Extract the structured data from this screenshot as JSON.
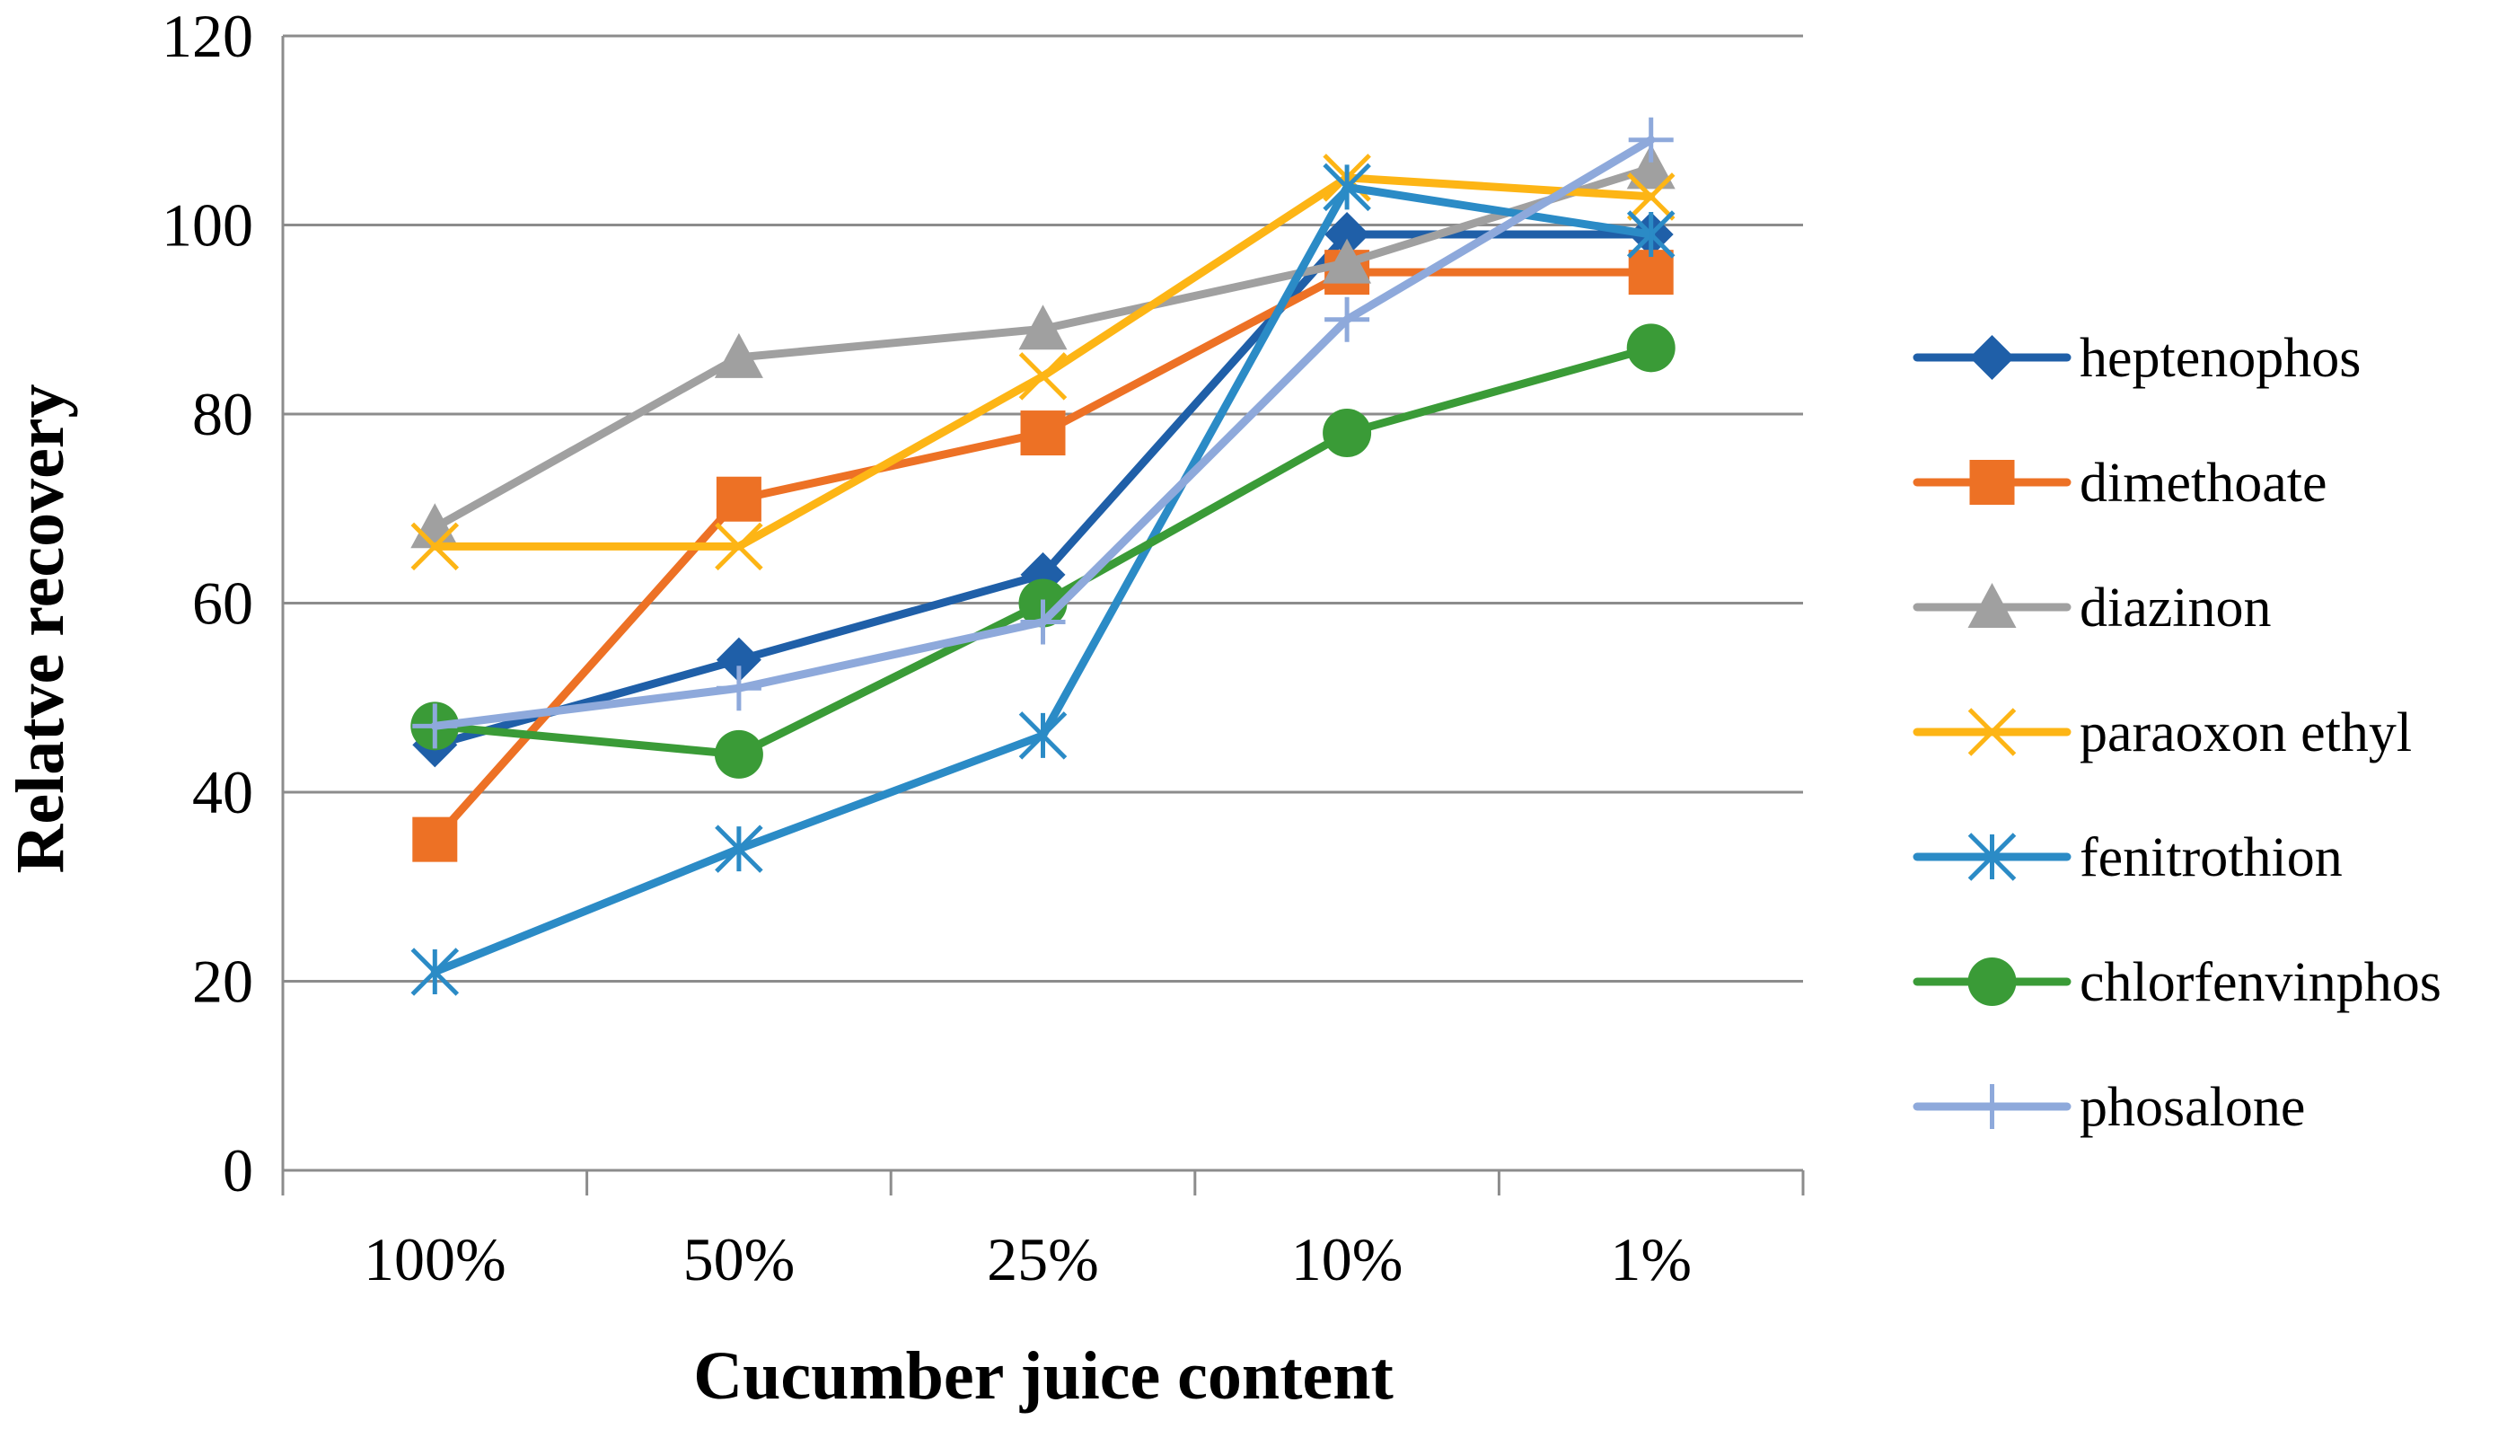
{
  "chart_data": {
    "type": "line",
    "title": "",
    "xlabel": "Cucumber juice content",
    "ylabel": "Relatve recovery",
    "categories": [
      "100%",
      "50%",
      "25%",
      "10%",
      "1%"
    ],
    "ylim": [
      0,
      120
    ],
    "yticks": [
      0,
      20,
      40,
      60,
      80,
      100,
      120
    ],
    "grid": true,
    "legend_position": "right",
    "series": [
      {
        "name": "heptenophos",
        "color": "#1f5fa8",
        "marker": "diamond",
        "values": [
          45,
          54,
          63,
          99,
          99
        ]
      },
      {
        "name": "dimethoate",
        "color": "#ed7125",
        "marker": "square",
        "values": [
          35,
          71,
          78,
          95,
          95
        ]
      },
      {
        "name": "diazinon",
        "color": "#a0a0a0",
        "marker": "triangle",
        "values": [
          68,
          86,
          89,
          96,
          106
        ]
      },
      {
        "name": "paraoxon ethyl",
        "color": "#fdb515",
        "marker": "x",
        "values": [
          66,
          66,
          84,
          105,
          103
        ]
      },
      {
        "name": "fenitrothion",
        "color": "#2b8bc6",
        "marker": "star",
        "values": [
          21,
          34,
          46,
          104,
          99
        ]
      },
      {
        "name": "chlorfenvinphos",
        "color": "#3a9b37",
        "marker": "circle",
        "values": [
          47,
          44,
          60,
          78,
          87
        ]
      },
      {
        "name": "phosalone",
        "color": "#8ea9db",
        "marker": "plus",
        "values": [
          47,
          51,
          58,
          90,
          109
        ]
      }
    ]
  }
}
